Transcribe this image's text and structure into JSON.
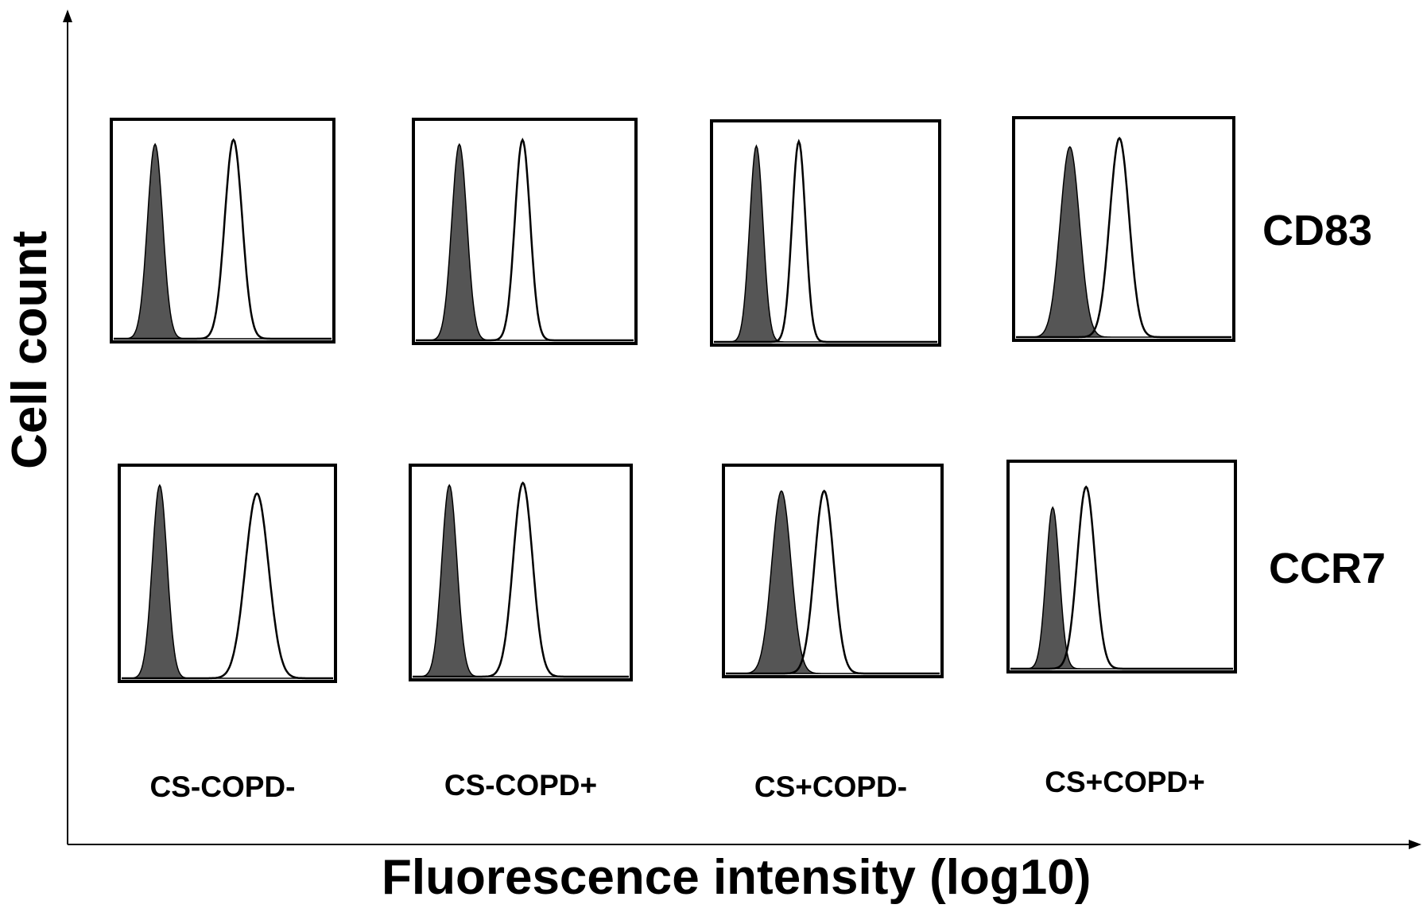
{
  "chart_data": {
    "type": "area",
    "ylabel": "Cell count",
    "xlabel": "Fluorescence intensity (log10)",
    "xscale": "log",
    "rows": [
      "CD83",
      "CCR7"
    ],
    "columns": [
      "CS-COPD-",
      "CS-COPD+",
      "CS+COPD-",
      "CS+COPD+"
    ],
    "fill_color": "#555555",
    "line_color": "#000000",
    "panels": [
      {
        "row": "CD83",
        "column": "CS-COPD-",
        "isotype_peak": 0.19,
        "isotype_width": 0.035,
        "isotype_height": 0.9,
        "marker_peak": 0.55,
        "marker_width": 0.04,
        "marker_height": 0.92
      },
      {
        "row": "CD83",
        "column": "CS-COPD+",
        "isotype_peak": 0.2,
        "isotype_width": 0.035,
        "isotype_height": 0.9,
        "marker_peak": 0.49,
        "marker_width": 0.035,
        "marker_height": 0.92
      },
      {
        "row": "CD83",
        "column": "CS+COPD-",
        "isotype_peak": 0.19,
        "isotype_width": 0.03,
        "isotype_height": 0.9,
        "marker_peak": 0.38,
        "marker_width": 0.03,
        "marker_height": 0.92
      },
      {
        "row": "CD83",
        "column": "CS+COPD+",
        "isotype_peak": 0.25,
        "isotype_width": 0.045,
        "isotype_height": 0.88,
        "marker_peak": 0.48,
        "marker_width": 0.045,
        "marker_height": 0.92
      },
      {
        "row": "CCR7",
        "column": "CS-COPD-",
        "isotype_peak": 0.18,
        "isotype_width": 0.035,
        "isotype_height": 0.92,
        "marker_peak": 0.64,
        "marker_width": 0.055,
        "marker_height": 0.88
      },
      {
        "row": "CCR7",
        "column": "CS-COPD+",
        "isotype_peak": 0.17,
        "isotype_width": 0.035,
        "isotype_height": 0.92,
        "marker_peak": 0.51,
        "marker_width": 0.045,
        "marker_height": 0.93
      },
      {
        "row": "CCR7",
        "column": "CS+COPD-",
        "isotype_peak": 0.26,
        "isotype_width": 0.045,
        "isotype_height": 0.89,
        "marker_peak": 0.46,
        "marker_width": 0.045,
        "marker_height": 0.89
      },
      {
        "row": "CCR7",
        "column": "CS+COPD+",
        "isotype_peak": 0.19,
        "isotype_width": 0.03,
        "isotype_height": 0.79,
        "marker_peak": 0.34,
        "marker_width": 0.04,
        "marker_height": 0.89
      }
    ]
  }
}
